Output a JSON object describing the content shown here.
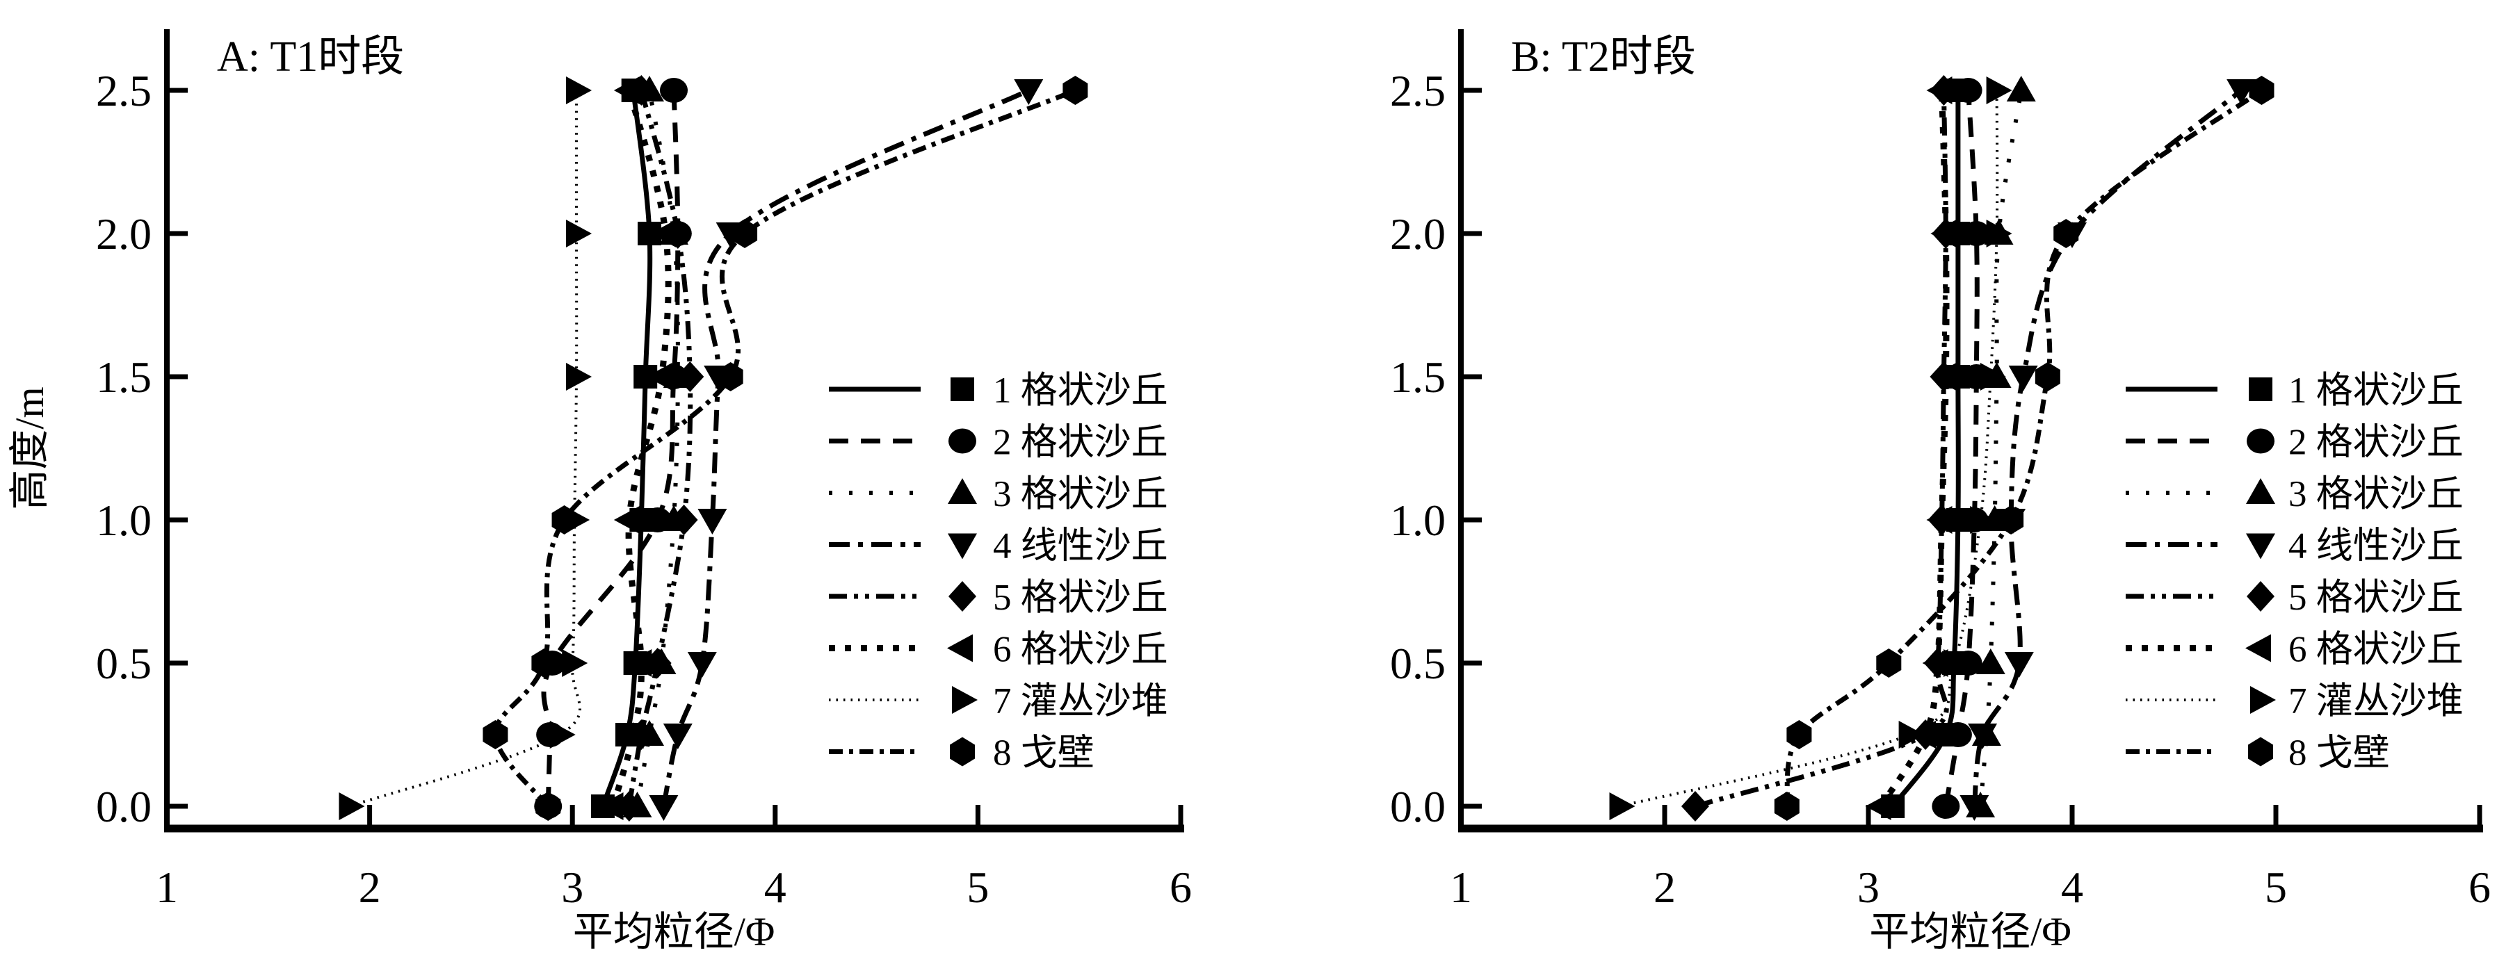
{
  "figure": {
    "background": "#ffffff",
    "ink_color": "#000000",
    "panel_a_title": "A: T1时段",
    "panel_b_title": "B: T2时段",
    "x_axis_label": "平均粒径/Φ",
    "y_axis_label": "高度/m"
  },
  "chart_data": [
    {
      "panel": "A",
      "type": "line",
      "title": "A: T1时段",
      "xlabel": "平均粒径/Φ",
      "ylabel": "高度/m",
      "xlim": [
        1,
        6
      ],
      "ylim": [
        0,
        2.5
      ],
      "x_ticks": [
        "1",
        "2",
        "3",
        "4",
        "5",
        "6"
      ],
      "y_ticks": [
        "0.0",
        "0.5",
        "1.0",
        "1.5",
        "2.0",
        "2.5"
      ],
      "grid": false,
      "legend_position": "right-middle",
      "heights": [
        0,
        0.25,
        0.5,
        1.0,
        1.5,
        2.0,
        2.5
      ],
      "series": [
        {
          "name": "1 格状沙丘",
          "marker": "square",
          "linestyle": "solid",
          "values": [
            3.15,
            3.27,
            3.31,
            3.34,
            3.36,
            3.38,
            3.3
          ]
        },
        {
          "name": "2 格状沙丘",
          "marker": "circle",
          "linestyle": "dashed",
          "values": [
            2.88,
            2.89,
            2.9,
            3.42,
            3.5,
            3.52,
            3.5
          ]
        },
        {
          "name": "3 格状沙丘",
          "marker": "triangle-up",
          "linestyle": "dotted",
          "values": [
            3.32,
            3.38,
            3.44,
            3.5,
            3.52,
            3.5,
            3.38
          ]
        },
        {
          "name": "4 线性沙丘",
          "marker": "triangle-down",
          "linestyle": "dashdot",
          "values": [
            3.45,
            3.52,
            3.64,
            3.69,
            3.72,
            3.78,
            5.25
          ]
        },
        {
          "name": "5 格状沙丘",
          "marker": "diamond",
          "linestyle": "dashdotdot",
          "values": [
            3.28,
            3.34,
            3.42,
            3.55,
            3.58,
            3.52,
            3.34
          ]
        },
        {
          "name": "6 格状沙丘",
          "marker": "triangle-left",
          "linestyle": "densedash",
          "values": [
            3.2,
            3.3,
            3.34,
            3.28,
            3.44,
            3.46,
            3.28
          ]
        },
        {
          "name": "7 灌丛沙堆",
          "marker": "triangle-right",
          "linestyle": "finedotted",
          "values": [
            1.9,
            2.94,
            3.0,
            3.01,
            3.02,
            3.02,
            3.02
          ]
        },
        {
          "name": "8 戈壁",
          "marker": "hexagon",
          "linestyle": "dashdotshort",
          "values": [
            2.88,
            2.62,
            2.86,
            2.96,
            3.78,
            3.85,
            5.48
          ]
        }
      ]
    },
    {
      "panel": "B",
      "type": "line",
      "title": "B: T2时段",
      "xlabel": "平均粒径/Φ",
      "ylabel": null,
      "xlim": [
        1,
        6
      ],
      "ylim": [
        0,
        2.5
      ],
      "x_ticks": [
        "1",
        "2",
        "3",
        "4",
        "5",
        "6"
      ],
      "y_ticks": [
        "0.0",
        "0.5",
        "1.0",
        "1.5",
        "2.0",
        "2.5"
      ],
      "grid": false,
      "legend_position": "right-middle",
      "heights": [
        0,
        0.25,
        0.5,
        1.0,
        1.5,
        2.0,
        2.5
      ],
      "series": [
        {
          "name": "1 格状沙丘",
          "marker": "square",
          "linestyle": "solid",
          "values": [
            3.12,
            3.38,
            3.42,
            3.44,
            3.44,
            3.44,
            3.44
          ]
        },
        {
          "name": "2 格状沙丘",
          "marker": "circle",
          "linestyle": "dashed",
          "values": [
            3.38,
            3.44,
            3.49,
            3.52,
            3.53,
            3.53,
            3.49
          ]
        },
        {
          "name": "3 格状沙丘",
          "marker": "triangle-up",
          "linestyle": "dotted",
          "values": [
            3.55,
            3.58,
            3.6,
            3.62,
            3.63,
            3.64,
            3.75
          ]
        },
        {
          "name": "4 线性沙丘",
          "marker": "triangle-down",
          "linestyle": "dashdot",
          "values": [
            3.52,
            3.56,
            3.74,
            3.7,
            3.76,
            4.0,
            4.83
          ]
        },
        {
          "name": "5 格状沙丘",
          "marker": "diamond",
          "linestyle": "dashdotdot",
          "values": [
            2.15,
            3.28,
            3.34,
            3.36,
            3.37,
            3.38,
            3.37
          ]
        },
        {
          "name": "6 格状沙丘",
          "marker": "triangle-left",
          "linestyle": "densedash",
          "values": [
            3.06,
            3.28,
            3.34,
            3.36,
            3.38,
            3.38,
            3.36
          ]
        },
        {
          "name": "7 灌丛沙堆",
          "marker": "triangle-right",
          "linestyle": "finedotted",
          "values": [
            1.78,
            3.2,
            3.42,
            3.55,
            3.6,
            3.63,
            3.63
          ]
        },
        {
          "name": "8 戈壁",
          "marker": "hexagon",
          "linestyle": "dashdotshort",
          "values": [
            2.6,
            2.66,
            3.1,
            3.7,
            3.88,
            3.97,
            4.93
          ]
        }
      ]
    }
  ]
}
